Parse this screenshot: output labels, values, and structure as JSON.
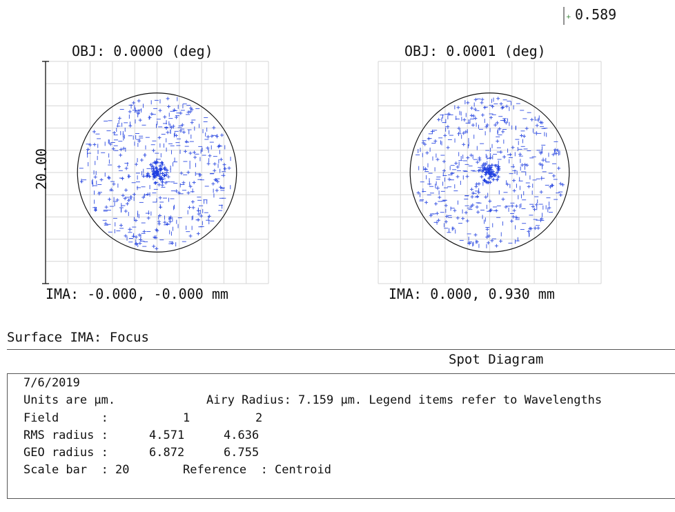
{
  "legend": {
    "label": "0.589",
    "color": "#2a7a2a"
  },
  "plots": [
    {
      "title": "OBJ: 0.0000 (deg)",
      "ima_label": "IMA: -0.000, -0.000 mm"
    },
    {
      "title": "OBJ: 0.0001 (deg)",
      "ima_label": "IMA: 0.000, 0.930 mm"
    }
  ],
  "chart_data": {
    "type": "scatter",
    "title": "Spot Diagram",
    "scale_bar_label": "20.00",
    "airy_radius_um": 7.159,
    "series": [
      {
        "name": "0.589",
        "color": "#1f3fe0"
      }
    ],
    "grid": true,
    "fields": [
      {
        "field": "1",
        "obj": "0.0000 (deg)",
        "ima": "-0.000, -0.000 mm",
        "rms_radius_um": 4.571,
        "geo_radius_um": 6.872
      },
      {
        "field": "2",
        "obj": "0.0001 (deg)",
        "ima": "0.000, 0.930 mm",
        "rms_radius_um": 4.636,
        "geo_radius_um": 6.755
      }
    ]
  },
  "surface_label": "Surface IMA: Focus",
  "panel": {
    "title": "Spot Diagram",
    "date": "7/6/2019",
    "units": "Units are µm.",
    "airy": "Airy Radius: 7.159 µm. Legend items refer to Wavelengths",
    "field_label": "Field      :",
    "field_1": "1",
    "field_2": "2",
    "rms_label": "RMS radius :",
    "rms_1": "4.571",
    "rms_2": "4.636",
    "geo_label": "GEO radius :",
    "geo_1": "6.872",
    "geo_2": "6.755",
    "scale_bar": "Scale bar  : 20",
    "reference": "Reference  : Centroid"
  }
}
